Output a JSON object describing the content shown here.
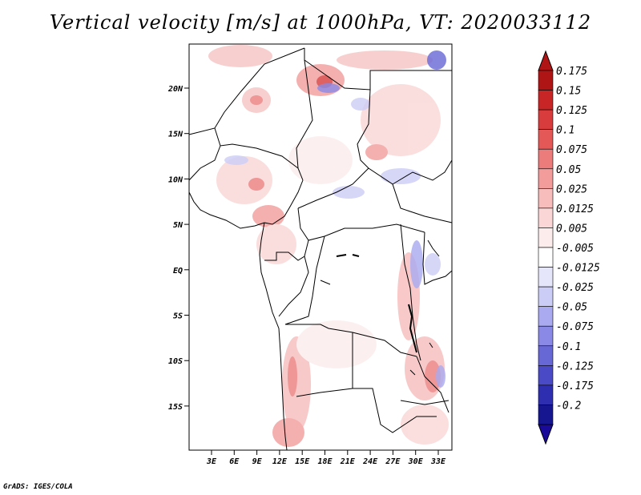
{
  "title": "Vertical velocity [m/s] at 1000hPa, VT: 2020033112",
  "credit": "GrADS: IGES/COLA",
  "map": {
    "lat_labels": [
      "20N",
      "15N",
      "10N",
      "5N",
      "EQ",
      "5S",
      "10S",
      "15S"
    ],
    "lon_labels": [
      "3E",
      "6E",
      "9E",
      "12E",
      "15E",
      "18E",
      "21E",
      "24E",
      "27E",
      "30E",
      "33E"
    ]
  },
  "colorbar": {
    "labels": [
      "0.175",
      "0.15",
      "0.125",
      "0.1",
      "0.075",
      "0.05",
      "0.025",
      "0.0125",
      "0.005",
      "-0.005",
      "-0.0125",
      "-0.025",
      "-0.05",
      "-0.075",
      "-0.1",
      "-0.125",
      "-0.175",
      "-0.2"
    ],
    "colors": [
      "#b01515",
      "#c82626",
      "#d83c3c",
      "#e45858",
      "#ec7c7c",
      "#f29c9c",
      "#f7bcbc",
      "#fad6d6",
      "#fcecec",
      "#ffffff",
      "#e6e6fa",
      "#cccdf6",
      "#a9aaf0",
      "#8a8ae6",
      "#6767d6",
      "#4a4ac6",
      "#2e2eb0",
      "#161690"
    ],
    "arrow_top_color": "#b01515",
    "arrow_bottom_color": "#1a0a9a"
  }
}
